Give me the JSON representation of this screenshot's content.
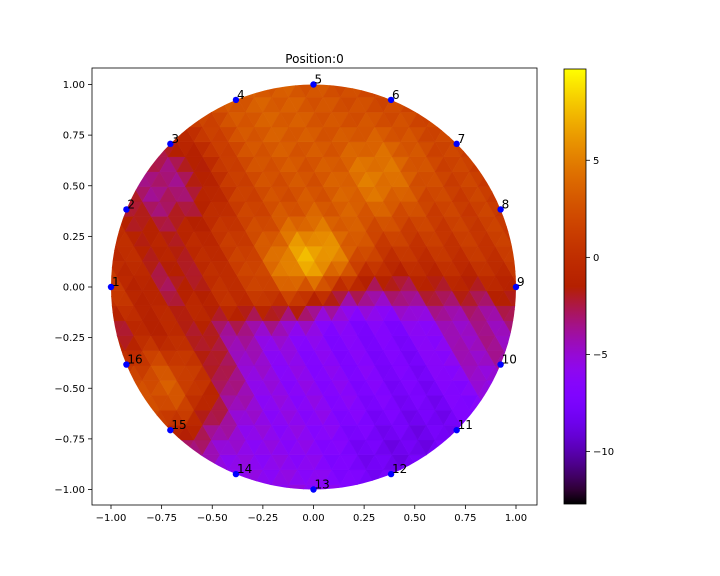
{
  "chart_data": {
    "type": "heatmap",
    "title": "Position:0",
    "xlabel": "",
    "ylabel": "",
    "xlim": [
      -1.05,
      1.1
    ],
    "ylim": [
      -1.08,
      1.08
    ],
    "x_ticks": [
      -1.0,
      -0.75,
      -0.5,
      -0.25,
      0.0,
      0.25,
      0.5,
      0.75,
      1.0
    ],
    "x_tick_labels": [
      "−1.00",
      "−0.75",
      "−0.50",
      "−0.25",
      "0.00",
      "0.25",
      "0.50",
      "0.75",
      "1.00"
    ],
    "y_ticks": [
      1.0,
      0.75,
      0.5,
      0.25,
      0.0,
      -0.25,
      -0.5,
      -0.75,
      -1.0
    ],
    "y_tick_labels": [
      "1.00",
      "0.75",
      "0.50",
      "0.25",
      "0.00",
      "−0.25",
      "−0.50",
      "−0.75",
      "−1.00"
    ],
    "colorbar": {
      "colormap": "gnuplot",
      "min": -12.7,
      "max": 9.7,
      "ticks": [
        5,
        0,
        -5,
        -10
      ],
      "tick_labels": [
        "5",
        "0",
        "−5",
        "−10"
      ]
    },
    "electrodes": [
      {
        "label": "1",
        "x": -1.0,
        "y": 0.0
      },
      {
        "label": "2",
        "x": -0.924,
        "y": 0.383
      },
      {
        "label": "3",
        "x": -0.707,
        "y": 0.707
      },
      {
        "label": "4",
        "x": -0.383,
        "y": 0.924
      },
      {
        "label": "5",
        "x": 0.0,
        "y": 1.0
      },
      {
        "label": "6",
        "x": 0.383,
        "y": 0.924
      },
      {
        "label": "7",
        "x": 0.707,
        "y": 0.707
      },
      {
        "label": "8",
        "x": 0.924,
        "y": 0.383
      },
      {
        "label": "9",
        "x": 1.0,
        "y": 0.0
      },
      {
        "label": "10",
        "x": 0.924,
        "y": -0.383
      },
      {
        "label": "11",
        "x": 0.707,
        "y": -0.707
      },
      {
        "label": "12",
        "x": 0.383,
        "y": -0.924
      },
      {
        "label": "13",
        "x": 0.0,
        "y": -1.0
      },
      {
        "label": "14",
        "x": -0.383,
        "y": -0.924
      },
      {
        "label": "15",
        "x": -0.707,
        "y": -0.707
      },
      {
        "label": "16",
        "x": -0.924,
        "y": -0.383
      }
    ],
    "field_features": [
      {
        "x": 0.0,
        "y": 0.1,
        "value": 9.7,
        "radius": 0.16
      },
      {
        "x": 0.3,
        "y": 0.55,
        "value": 5.0,
        "radius": 0.16
      },
      {
        "x": -0.25,
        "y": 0.8,
        "value": 3.5,
        "radius": 0.3
      },
      {
        "x": 0.32,
        "y": -0.62,
        "value": -12.7,
        "radius": 0.26
      },
      {
        "x": 0.45,
        "y": -0.55,
        "value": -8.5,
        "radius": 0.3
      },
      {
        "x": 0.2,
        "y": -0.35,
        "value": -7.5,
        "radius": 0.22
      },
      {
        "x": -0.1,
        "y": -0.6,
        "value": -6.0,
        "radius": 0.3
      },
      {
        "x": -0.35,
        "y": -0.85,
        "value": -6.0,
        "radius": 0.2
      },
      {
        "x": -0.75,
        "y": 0.5,
        "value": -3.5,
        "radius": 0.22
      },
      {
        "x": -0.7,
        "y": 0.0,
        "value": -2.5,
        "radius": 0.15
      },
      {
        "x": -0.75,
        "y": -0.5,
        "value": 3.0,
        "radius": 0.2
      },
      {
        "x": 0.85,
        "y": -0.25,
        "value": -4.0,
        "radius": 0.18
      }
    ],
    "grid": false,
    "legend": "none"
  }
}
